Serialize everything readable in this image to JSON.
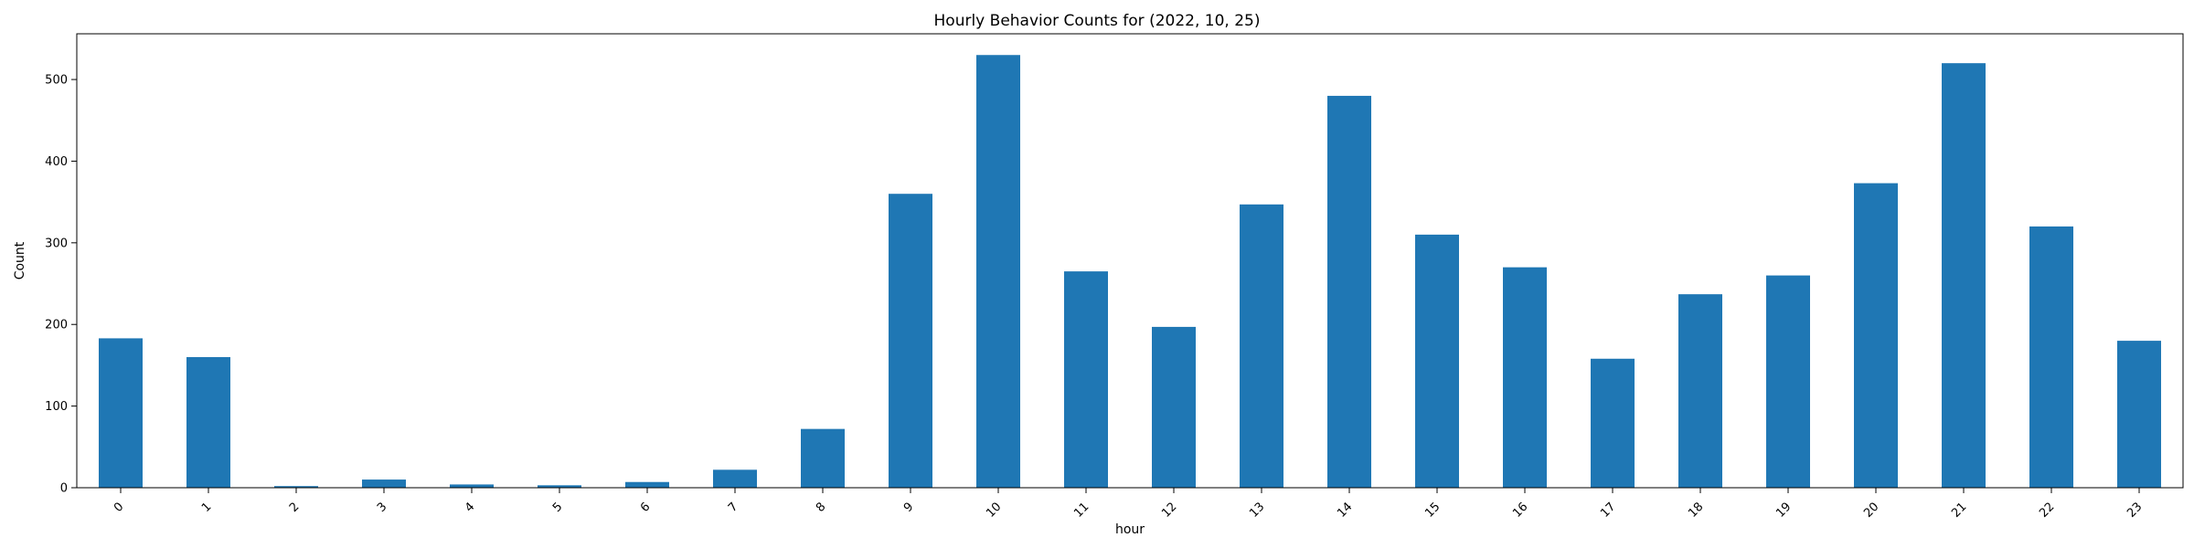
{
  "chart_data": {
    "type": "bar",
    "title": "Hourly Behavior Counts for (2022, 10, 25)",
    "xlabel": "hour",
    "ylabel": "Count",
    "categories": [
      "0",
      "1",
      "2",
      "3",
      "4",
      "5",
      "6",
      "7",
      "8",
      "9",
      "10",
      "11",
      "12",
      "13",
      "14",
      "15",
      "16",
      "17",
      "18",
      "19",
      "20",
      "21",
      "22",
      "23"
    ],
    "values": [
      183,
      160,
      2,
      10,
      4,
      3,
      7,
      22,
      72,
      360,
      530,
      265,
      197,
      347,
      480,
      310,
      270,
      158,
      237,
      260,
      373,
      520,
      320,
      180
    ],
    "ylim": [
      0,
      556
    ],
    "yticks": [
      0,
      100,
      200,
      300,
      400,
      500
    ],
    "grid": false,
    "bar_color": "#1f77b4"
  }
}
